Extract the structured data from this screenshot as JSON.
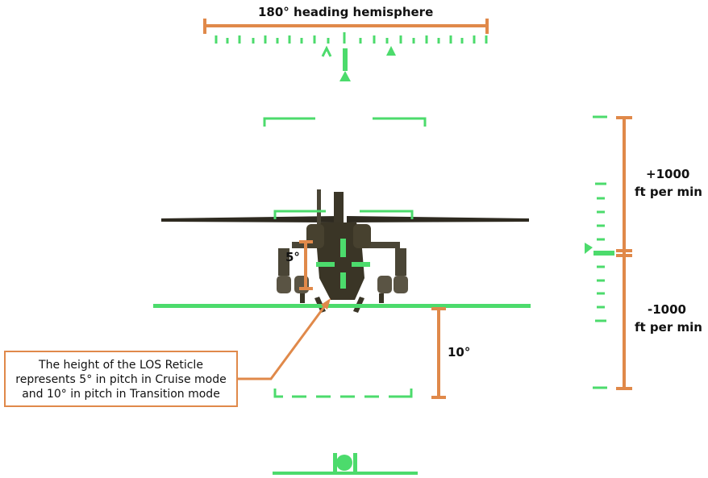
{
  "labels": {
    "heading_hemisphere": "180° heading hemisphere",
    "climb": [
      "+1000",
      "ft per min"
    ],
    "descend": [
      "-1000",
      "ft per min"
    ],
    "reticle_5": "5°",
    "horizon_10": "10°",
    "callout_lines": [
      "The height of the LOS Reticle",
      "represents 5° in pitch in Cruise mode",
      "and 10° in pitch in Transition mode"
    ]
  },
  "colors": {
    "symbology": "#4cdb6c",
    "annotation": "#e0894a",
    "text": "#111111"
  },
  "icons": [
    "helicopter-silhouette",
    "heading-caret",
    "heading-triangle",
    "vsi-pointer",
    "skid-ball"
  ]
}
